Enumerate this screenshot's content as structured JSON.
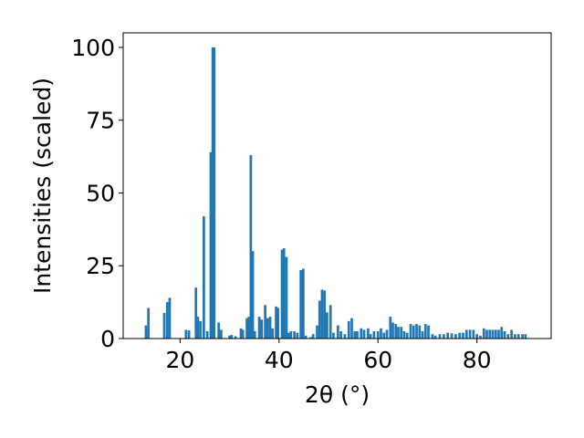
{
  "chart_data": {
    "type": "bar",
    "xlabel": "2θ (°)",
    "ylabel": "Intensities (scaled)",
    "xlim": [
      8.5,
      95
    ],
    "ylim": [
      0,
      105
    ],
    "xticks": [
      20,
      40,
      60,
      80
    ],
    "yticks": [
      0,
      25,
      50,
      75,
      100
    ],
    "grid": false,
    "bar_color": "#1f77b4",
    "x": [
      13.1,
      13.6,
      16.8,
      17.4,
      17.9,
      21.2,
      21.8,
      23.2,
      23.6,
      24.1,
      24.8,
      25.5,
      26.2,
      26.6,
      26.9,
      27.8,
      28.3,
      30.0,
      30.4,
      31.2,
      32.3,
      32.7,
      33.5,
      33.9,
      34.3,
      34.7,
      35.1,
      36.0,
      36.5,
      37.2,
      37.7,
      38.2,
      38.7,
      39.4,
      39.8,
      40.6,
      41.0,
      41.5,
      41.9,
      42.4,
      43.1,
      43.7,
      44.4,
      44.9,
      45.4,
      46.4,
      46.9,
      47.7,
      48.2,
      48.7,
      49.2,
      49.7,
      50.4,
      51.0,
      51.9,
      52.5,
      53.3,
      54.1,
      54.7,
      55.3,
      55.8,
      56.6,
      57.2,
      58.0,
      58.5,
      59.2,
      60.0,
      60.6,
      61.2,
      61.8,
      62.5,
      63.0,
      63.6,
      64.1,
      64.7,
      65.3,
      65.9,
      66.6,
      67.2,
      67.8,
      68.4,
      69.0,
      69.6,
      70.2,
      71.0,
      71.6,
      72.5,
      73.3,
      74.1,
      74.9,
      75.7,
      76.5,
      77.2,
      77.9,
      78.6,
      79.3,
      80.0,
      80.7,
      81.4,
      82.0,
      82.6,
      83.2,
      83.8,
      84.4,
      85.0,
      85.6,
      86.3,
      87.0,
      87.7,
      88.4,
      89.2,
      89.8
    ],
    "values": [
      4.5,
      10.5,
      8.8,
      12.5,
      14.0,
      3.0,
      2.8,
      17.5,
      7.5,
      6.0,
      42.0,
      2.5,
      64.0,
      100.0,
      100.0,
      5.5,
      3.0,
      1.0,
      1.2,
      0.8,
      3.5,
      3.0,
      7.0,
      7.5,
      63.0,
      30.0,
      2.5,
      7.5,
      6.5,
      11.5,
      7.0,
      7.5,
      3.5,
      11.0,
      10.5,
      30.5,
      31.0,
      28.0,
      2.0,
      2.5,
      2.5,
      2.0,
      23.5,
      24.0,
      1.0,
      0.5,
      1.5,
      4.5,
      13.0,
      16.8,
      16.5,
      9.0,
      11.5,
      2.0,
      4.5,
      2.5,
      1.5,
      6.0,
      7.0,
      2.5,
      2.5,
      3.5,
      3.0,
      3.5,
      1.5,
      2.5,
      2.5,
      3.5,
      2.0,
      3.0,
      7.5,
      5.5,
      5.0,
      4.0,
      4.0,
      2.5,
      2.0,
      5.0,
      4.5,
      5.0,
      4.5,
      2.5,
      5.0,
      4.5,
      1.5,
      1.0,
      1.5,
      1.5,
      2.0,
      1.8,
      1.5,
      2.0,
      2.0,
      3.0,
      3.0,
      3.0,
      1.5,
      1.0,
      3.5,
      3.0,
      3.0,
      3.0,
      3.0,
      3.0,
      4.0,
      2.5,
      1.5,
      3.0,
      1.5,
      1.5,
      1.5,
      1.5
    ]
  }
}
